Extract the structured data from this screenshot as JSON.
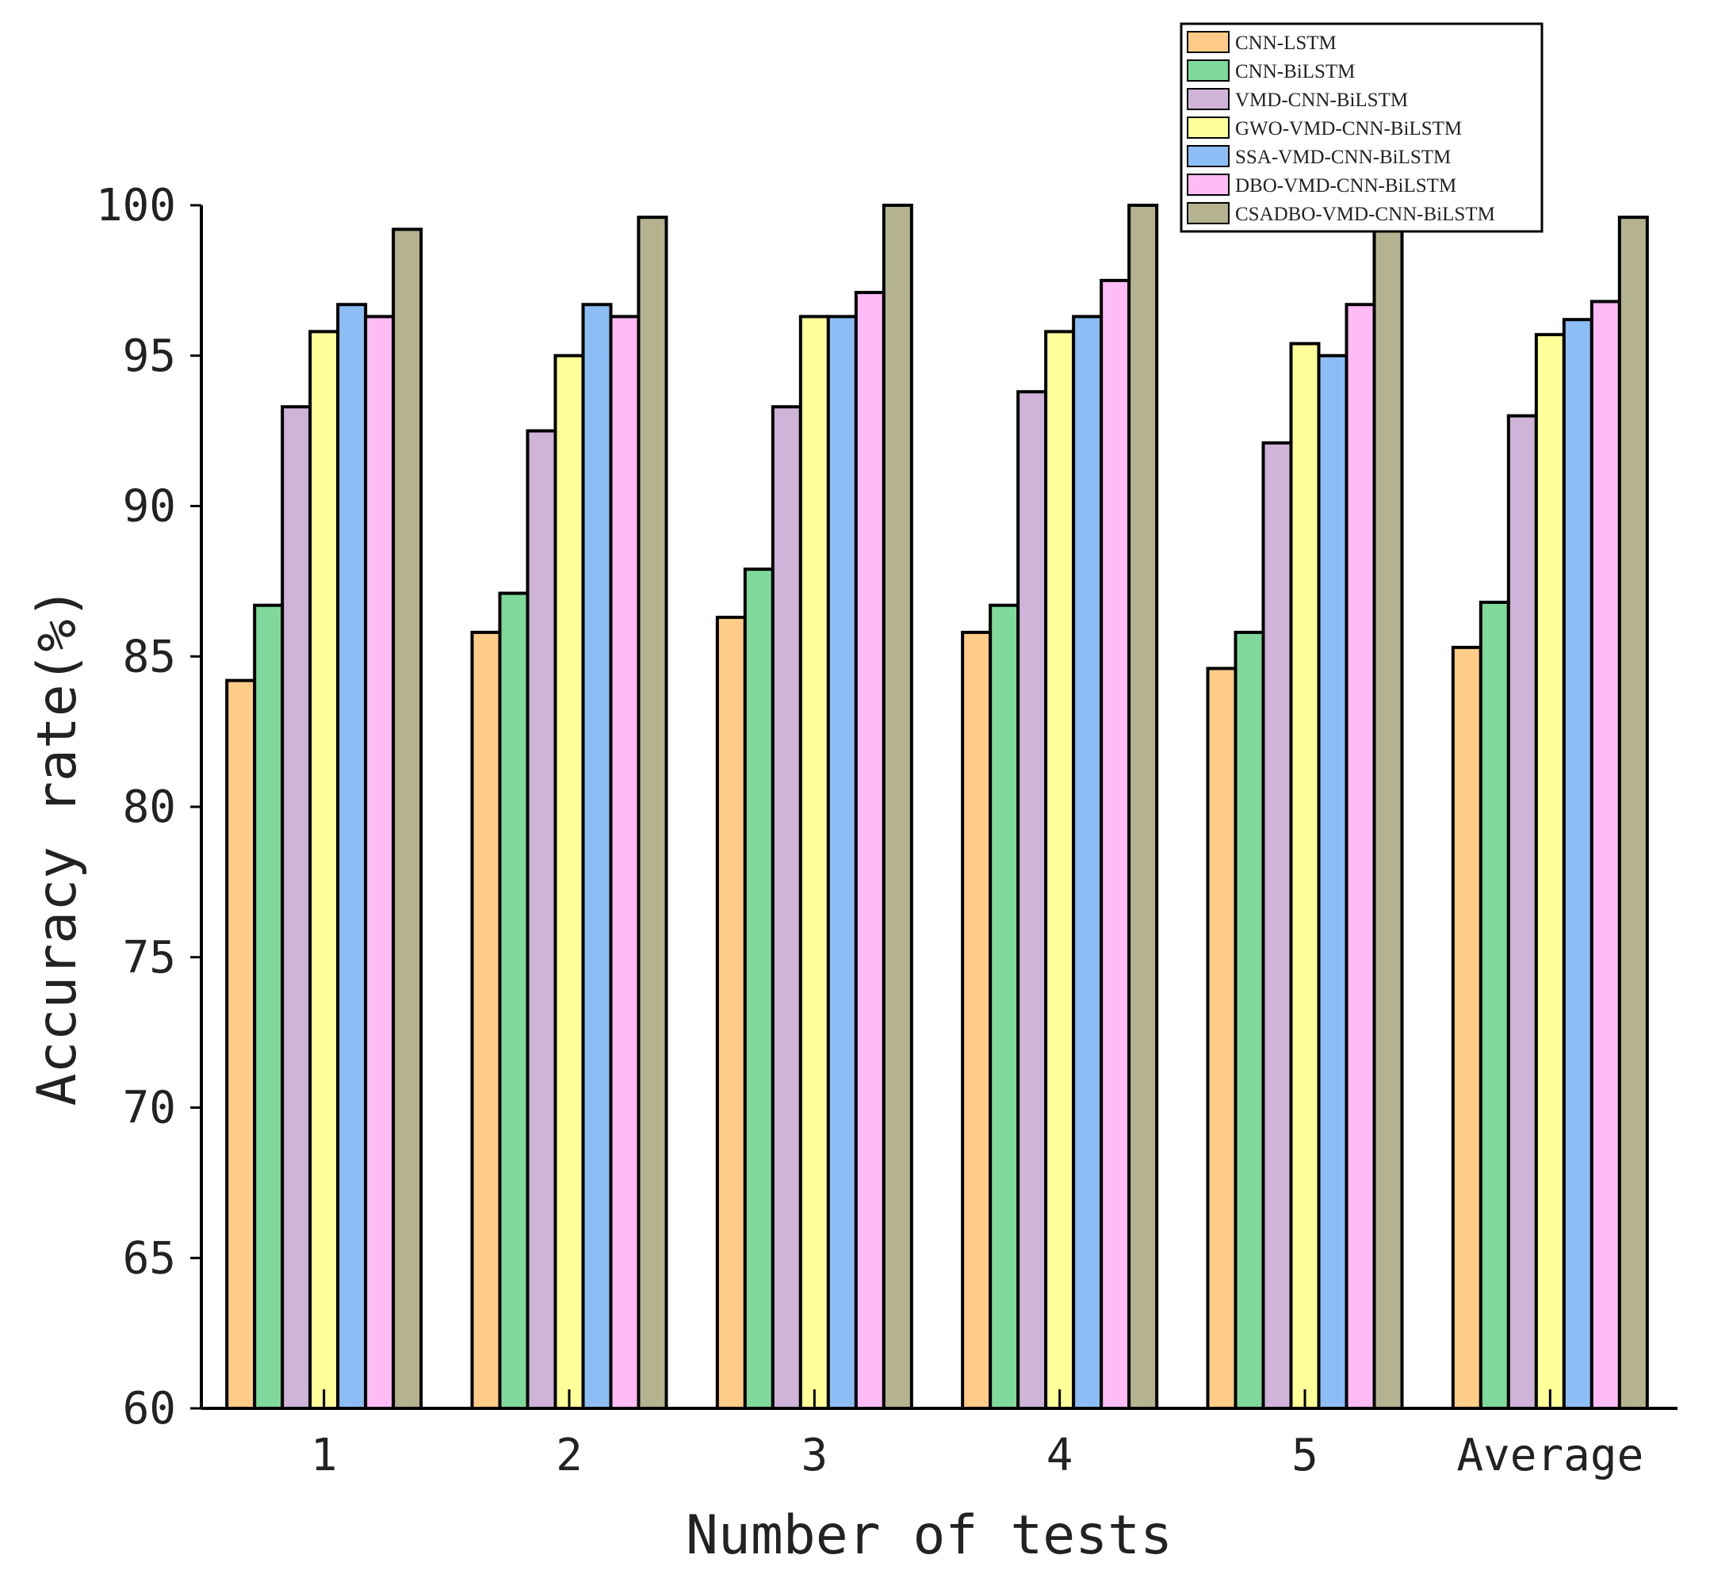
{
  "chart_data": {
    "type": "bar",
    "title": "",
    "xlabel": "Number of tests",
    "ylabel": "Accuracy rate(%)",
    "ylim": [
      60,
      100
    ],
    "yticks": [
      60,
      65,
      70,
      75,
      80,
      85,
      90,
      95,
      100
    ],
    "grid": false,
    "legend_position": "top-right",
    "categories": [
      "1",
      "2",
      "3",
      "4",
      "5",
      "Average"
    ],
    "series": [
      {
        "name": "CNN-LSTM",
        "color": "#FFCC88",
        "values": [
          84.2,
          85.8,
          86.3,
          85.8,
          84.6,
          85.3
        ]
      },
      {
        "name": "CNN-BiLSTM",
        "color": "#7FD99A",
        "values": [
          86.7,
          87.1,
          87.9,
          86.7,
          85.8,
          86.8
        ]
      },
      {
        "name": "VMD-CNN-BiLSTM",
        "color": "#CFB3D9",
        "values": [
          93.3,
          92.5,
          93.3,
          93.8,
          92.1,
          93.0
        ]
      },
      {
        "name": "GWO-VMD-CNN-BiLSTM",
        "color": "#FFFF99",
        "values": [
          95.8,
          95.0,
          96.3,
          95.8,
          95.4,
          95.7
        ]
      },
      {
        "name": "SSA-VMD-CNN-BiLSTM",
        "color": "#8CBDF5",
        "values": [
          96.7,
          96.7,
          96.3,
          96.3,
          95.0,
          96.2
        ]
      },
      {
        "name": "DBO-VMD-CNN-BiLSTM",
        "color": "#FFBBF5",
        "values": [
          96.3,
          96.3,
          97.1,
          97.5,
          96.7,
          96.8
        ]
      },
      {
        "name": "CSADBO-VMD-CNN-BiLSTM",
        "color": "#B5B38F",
        "values": [
          99.2,
          99.6,
          100.0,
          100.0,
          99.2,
          99.6
        ]
      }
    ]
  }
}
